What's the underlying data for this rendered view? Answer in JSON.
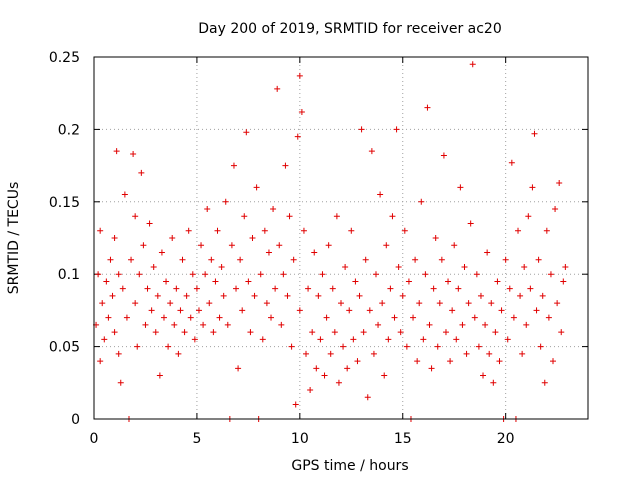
{
  "chart_data": {
    "type": "scatter",
    "title": "Day 200 of 2019, SRMTID for receiver ac20",
    "xlabel": "GPS time / hours",
    "ylabel": "SRMTID / TECUs",
    "xlim": [
      0,
      24
    ],
    "ylim": [
      0,
      0.25
    ],
    "xticks": [
      0,
      5,
      10,
      15,
      20
    ],
    "yticks": [
      0,
      0.05,
      0.1,
      0.15,
      0.2,
      0.25
    ],
    "xtick_labels": [
      "0",
      "5",
      "10",
      "15",
      "20"
    ],
    "ytick_labels": [
      "0",
      "0.05",
      "0.1",
      "0.15",
      "0.2",
      "0.25"
    ],
    "grid": true,
    "marker": "+",
    "color": "#e00000",
    "series": [
      {
        "name": "SRMTID",
        "points": [
          [
            0.1,
            0.065
          ],
          [
            0.2,
            0.1
          ],
          [
            0.3,
            0.13
          ],
          [
            0.3,
            0.04
          ],
          [
            0.4,
            0.08
          ],
          [
            0.5,
            0.055
          ],
          [
            0.6,
            0.095
          ],
          [
            0.7,
            0.07
          ],
          [
            0.8,
            0.11
          ],
          [
            0.9,
            0.085
          ],
          [
            1.0,
            0.125
          ],
          [
            1.0,
            0.06
          ],
          [
            1.1,
            0.185
          ],
          [
            1.2,
            0.1
          ],
          [
            1.2,
            0.045
          ],
          [
            1.3,
            0.025
          ],
          [
            1.4,
            0.09
          ],
          [
            1.5,
            0.155
          ],
          [
            1.6,
            0.07
          ],
          [
            1.7,
            0.0
          ],
          [
            1.8,
            0.11
          ],
          [
            1.9,
            0.183
          ],
          [
            2.0,
            0.08
          ],
          [
            2.0,
            0.14
          ],
          [
            2.1,
            0.05
          ],
          [
            2.2,
            0.1
          ],
          [
            2.3,
            0.17
          ],
          [
            2.4,
            0.12
          ],
          [
            2.5,
            0.065
          ],
          [
            2.6,
            0.09
          ],
          [
            2.7,
            0.135
          ],
          [
            2.8,
            0.075
          ],
          [
            2.9,
            0.105
          ],
          [
            3.0,
            0.06
          ],
          [
            3.1,
            0.085
          ],
          [
            3.2,
            0.03
          ],
          [
            3.3,
            0.115
          ],
          [
            3.4,
            0.07
          ],
          [
            3.5,
            0.095
          ],
          [
            3.6,
            0.05
          ],
          [
            3.7,
            0.08
          ],
          [
            3.8,
            0.125
          ],
          [
            3.9,
            0.065
          ],
          [
            4.0,
            0.09
          ],
          [
            4.1,
            0.045
          ],
          [
            4.2,
            0.075
          ],
          [
            4.3,
            0.11
          ],
          [
            4.4,
            0.06
          ],
          [
            4.5,
            0.085
          ],
          [
            4.6,
            0.13
          ],
          [
            4.7,
            0.07
          ],
          [
            4.8,
            0.1
          ],
          [
            4.9,
            0.055
          ],
          [
            5.0,
            0.09
          ],
          [
            5.1,
            0.075
          ],
          [
            5.2,
            0.12
          ],
          [
            5.3,
            0.065
          ],
          [
            5.4,
            0.1
          ],
          [
            5.5,
            0.145
          ],
          [
            5.6,
            0.08
          ],
          [
            5.7,
            0.11
          ],
          [
            5.8,
            0.06
          ],
          [
            5.9,
            0.095
          ],
          [
            6.0,
            0.13
          ],
          [
            6.1,
            0.07
          ],
          [
            6.2,
            0.105
          ],
          [
            6.3,
            0.085
          ],
          [
            6.4,
            0.15
          ],
          [
            6.5,
            0.065
          ],
          [
            6.6,
            0.0
          ],
          [
            6.7,
            0.12
          ],
          [
            6.8,
            0.175
          ],
          [
            6.9,
            0.09
          ],
          [
            7.0,
            0.035
          ],
          [
            7.1,
            0.11
          ],
          [
            7.2,
            0.075
          ],
          [
            7.3,
            0.14
          ],
          [
            7.4,
            0.198
          ],
          [
            7.5,
            0.095
          ],
          [
            7.6,
            0.06
          ],
          [
            7.7,
            0.125
          ],
          [
            7.8,
            0.085
          ],
          [
            7.9,
            0.16
          ],
          [
            8.0,
            0.0
          ],
          [
            8.1,
            0.1
          ],
          [
            8.2,
            0.055
          ],
          [
            8.3,
            0.13
          ],
          [
            8.4,
            0.08
          ],
          [
            8.5,
            0.115
          ],
          [
            8.6,
            0.07
          ],
          [
            8.7,
            0.145
          ],
          [
            8.8,
            0.09
          ],
          [
            8.9,
            0.228
          ],
          [
            9.0,
            0.12
          ],
          [
            9.1,
            0.065
          ],
          [
            9.2,
            0.1
          ],
          [
            9.3,
            0.175
          ],
          [
            9.4,
            0.085
          ],
          [
            9.5,
            0.14
          ],
          [
            9.6,
            0.05
          ],
          [
            9.7,
            0.11
          ],
          [
            9.8,
            0.01
          ],
          [
            9.9,
            0.195
          ],
          [
            10.0,
            0.237
          ],
          [
            10.0,
            0.075
          ],
          [
            10.1,
            0.212
          ],
          [
            10.2,
            0.13
          ],
          [
            10.3,
            0.045
          ],
          [
            10.4,
            0.09
          ],
          [
            10.5,
            0.02
          ],
          [
            10.6,
            0.06
          ],
          [
            10.7,
            0.115
          ],
          [
            10.8,
            0.035
          ],
          [
            10.9,
            0.085
          ],
          [
            11.0,
            0.055
          ],
          [
            11.1,
            0.1
          ],
          [
            11.2,
            0.03
          ],
          [
            11.3,
            0.07
          ],
          [
            11.4,
            0.12
          ],
          [
            11.5,
            0.045
          ],
          [
            11.6,
            0.09
          ],
          [
            11.7,
            0.06
          ],
          [
            11.8,
            0.14
          ],
          [
            11.9,
            0.025
          ],
          [
            12.0,
            0.08
          ],
          [
            12.1,
            0.05
          ],
          [
            12.2,
            0.105
          ],
          [
            12.3,
            0.035
          ],
          [
            12.4,
            0.075
          ],
          [
            12.5,
            0.13
          ],
          [
            12.6,
            0.055
          ],
          [
            12.7,
            0.095
          ],
          [
            12.8,
            0.04
          ],
          [
            12.9,
            0.085
          ],
          [
            13.0,
            0.2
          ],
          [
            13.1,
            0.06
          ],
          [
            13.2,
            0.11
          ],
          [
            13.3,
            0.015
          ],
          [
            13.4,
            0.075
          ],
          [
            13.5,
            0.185
          ],
          [
            13.6,
            0.045
          ],
          [
            13.7,
            0.1
          ],
          [
            13.8,
            0.065
          ],
          [
            13.9,
            0.155
          ],
          [
            14.0,
            0.08
          ],
          [
            14.1,
            0.03
          ],
          [
            14.2,
            0.12
          ],
          [
            14.3,
            0.055
          ],
          [
            14.4,
            0.09
          ],
          [
            14.5,
            0.14
          ],
          [
            14.6,
            0.07
          ],
          [
            14.7,
            0.2
          ],
          [
            14.8,
            0.105
          ],
          [
            14.9,
            0.06
          ],
          [
            15.0,
            0.085
          ],
          [
            15.1,
            0.13
          ],
          [
            15.2,
            0.05
          ],
          [
            15.3,
            0.095
          ],
          [
            15.4,
            0.0
          ],
          [
            15.5,
            0.07
          ],
          [
            15.6,
            0.11
          ],
          [
            15.7,
            0.04
          ],
          [
            15.8,
            0.08
          ],
          [
            15.9,
            0.15
          ],
          [
            16.0,
            0.055
          ],
          [
            16.1,
            0.1
          ],
          [
            16.2,
            0.215
          ],
          [
            16.3,
            0.065
          ],
          [
            16.4,
            0.035
          ],
          [
            16.5,
            0.09
          ],
          [
            16.6,
            0.125
          ],
          [
            16.7,
            0.05
          ],
          [
            16.8,
            0.08
          ],
          [
            16.9,
            0.11
          ],
          [
            17.0,
            0.182
          ],
          [
            17.1,
            0.06
          ],
          [
            17.2,
            0.095
          ],
          [
            17.3,
            0.04
          ],
          [
            17.4,
            0.075
          ],
          [
            17.5,
            0.12
          ],
          [
            17.6,
            0.055
          ],
          [
            17.7,
            0.09
          ],
          [
            17.8,
            0.16
          ],
          [
            17.9,
            0.065
          ],
          [
            18.0,
            0.105
          ],
          [
            18.1,
            0.045
          ],
          [
            18.2,
            0.08
          ],
          [
            18.3,
            0.135
          ],
          [
            18.4,
            0.245
          ],
          [
            18.5,
            0.07
          ],
          [
            18.6,
            0.1
          ],
          [
            18.7,
            0.05
          ],
          [
            18.8,
            0.085
          ],
          [
            18.9,
            0.03
          ],
          [
            19.0,
            0.065
          ],
          [
            19.1,
            0.115
          ],
          [
            19.2,
            0.045
          ],
          [
            19.3,
            0.08
          ],
          [
            19.4,
            0.025
          ],
          [
            19.5,
            0.06
          ],
          [
            19.6,
            0.095
          ],
          [
            19.7,
            0.04
          ],
          [
            19.8,
            0.075
          ],
          [
            19.9,
            0.0
          ],
          [
            20.0,
            0.11
          ],
          [
            20.1,
            0.055
          ],
          [
            20.2,
            0.09
          ],
          [
            20.3,
            0.177
          ],
          [
            20.4,
            0.07
          ],
          [
            20.5,
            0.0
          ],
          [
            20.6,
            0.13
          ],
          [
            20.7,
            0.085
          ],
          [
            20.8,
            0.045
          ],
          [
            20.9,
            0.105
          ],
          [
            21.0,
            0.065
          ],
          [
            21.1,
            0.14
          ],
          [
            21.2,
            0.09
          ],
          [
            21.3,
            0.16
          ],
          [
            21.4,
            0.197
          ],
          [
            21.5,
            0.075
          ],
          [
            21.6,
            0.11
          ],
          [
            21.7,
            0.05
          ],
          [
            21.8,
            0.085
          ],
          [
            21.9,
            0.025
          ],
          [
            22.0,
            0.13
          ],
          [
            22.1,
            0.07
          ],
          [
            22.2,
            0.1
          ],
          [
            22.3,
            0.04
          ],
          [
            22.4,
            0.145
          ],
          [
            22.5,
            0.08
          ],
          [
            22.6,
            0.163
          ],
          [
            22.7,
            0.06
          ],
          [
            22.8,
            0.095
          ],
          [
            22.9,
            0.105
          ]
        ]
      }
    ]
  }
}
